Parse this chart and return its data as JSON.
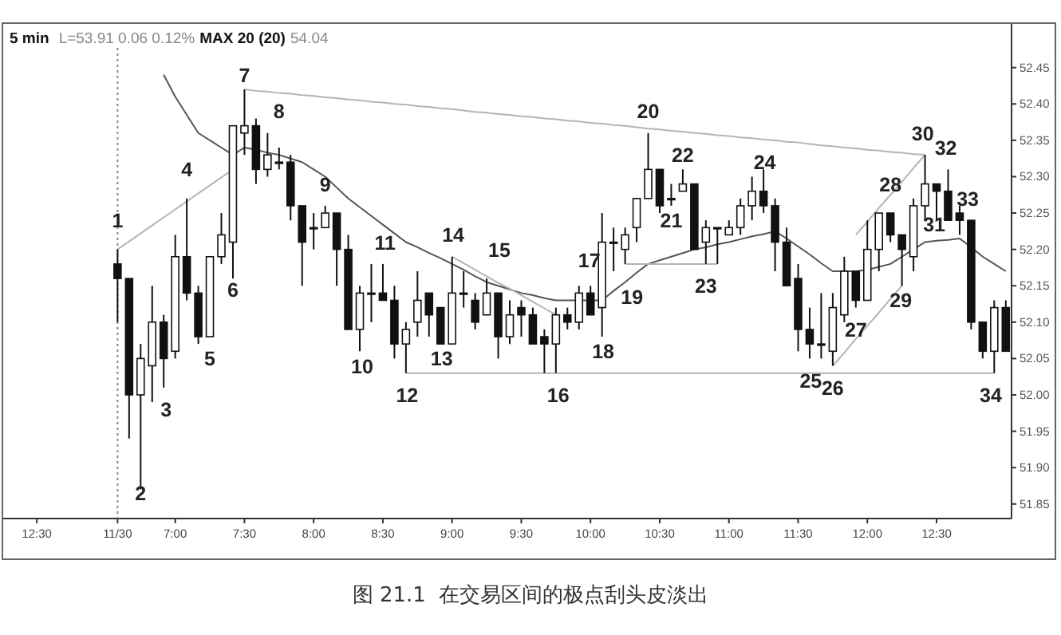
{
  "chart_data": {
    "type": "candlestick",
    "title": "5 min",
    "subtitle": "L=53.91 0.06 0.12% **MAX 20 (20)** 54.04",
    "categories": [
      null,
      null,
      "12:30",
      null,
      null,
      null,
      null,
      null,
      null,
      "11/30",
      null,
      null,
      null,
      null,
      "7:00",
      null,
      null,
      null,
      null,
      null,
      "7:30",
      null,
      null,
      null,
      null,
      null,
      "8:00",
      null,
      null,
      null,
      null,
      null,
      "8:30",
      null,
      null,
      null,
      null,
      null,
      "9:00",
      null,
      null,
      null,
      null,
      null,
      "9:30",
      null,
      null,
      null,
      null,
      null,
      "10:00",
      null,
      null,
      null,
      null,
      null,
      "10:30",
      null,
      null,
      null,
      null,
      null,
      "11:00",
      null,
      null,
      null,
      null,
      null,
      "11:30",
      null,
      null,
      null,
      null,
      null,
      "12:00",
      null,
      null,
      null,
      null,
      null,
      "12:30",
      null,
      null,
      null,
      null,
      null,
      null
    ],
    "ohlc": [
      null,
      null,
      null,
      null,
      null,
      null,
      null,
      null,
      null,
      [
        52.18,
        52.2,
        52.1,
        52.16
      ],
      [
        52.16,
        52.16,
        51.94,
        52.0
      ],
      [
        52.0,
        52.07,
        51.87,
        52.05
      ],
      [
        52.04,
        52.15,
        51.99,
        52.1
      ],
      [
        52.1,
        52.11,
        52.01,
        52.05
      ],
      [
        52.06,
        52.22,
        52.05,
        52.19
      ],
      [
        52.19,
        52.27,
        52.13,
        52.14
      ],
      [
        52.14,
        52.15,
        52.07,
        52.08
      ],
      [
        52.08,
        52.19,
        52.08,
        52.19
      ],
      [
        52.19,
        52.25,
        52.18,
        52.22
      ],
      [
        52.21,
        52.37,
        52.16,
        52.37
      ],
      [
        52.36,
        52.42,
        52.33,
        52.37
      ],
      [
        52.37,
        52.38,
        52.29,
        52.31
      ],
      [
        52.31,
        52.36,
        52.3,
        52.33
      ],
      [
        52.32,
        52.34,
        52.31,
        52.32
      ],
      [
        52.32,
        52.33,
        52.24,
        52.26
      ],
      [
        52.26,
        52.26,
        52.15,
        52.21
      ],
      [
        52.23,
        52.25,
        52.2,
        52.23
      ],
      [
        52.23,
        52.26,
        52.23,
        52.25
      ],
      [
        52.25,
        52.25,
        52.15,
        52.2
      ],
      [
        52.2,
        52.22,
        52.09,
        52.09
      ],
      [
        52.09,
        52.15,
        52.06,
        52.14
      ],
      [
        52.14,
        52.18,
        52.1,
        52.14
      ],
      [
        52.14,
        52.18,
        52.13,
        52.13
      ],
      [
        52.13,
        52.15,
        52.05,
        52.07
      ],
      [
        52.07,
        52.1,
        52.03,
        52.09
      ],
      [
        52.1,
        52.17,
        52.08,
        52.13
      ],
      [
        52.14,
        52.14,
        52.08,
        52.11
      ],
      [
        52.12,
        52.12,
        52.07,
        52.07
      ],
      [
        52.07,
        52.19,
        52.07,
        52.14
      ],
      [
        52.14,
        52.17,
        52.12,
        52.14
      ],
      [
        52.13,
        52.14,
        52.09,
        52.1
      ],
      [
        52.11,
        52.16,
        52.11,
        52.14
      ],
      [
        52.14,
        52.14,
        52.05,
        52.08
      ],
      [
        52.08,
        52.13,
        52.07,
        52.11
      ],
      [
        52.12,
        52.13,
        52.08,
        52.11
      ],
      [
        52.11,
        52.12,
        52.07,
        52.07
      ],
      [
        52.08,
        52.09,
        52.03,
        52.07
      ],
      [
        52.07,
        52.12,
        52.03,
        52.11
      ],
      [
        52.11,
        52.12,
        52.09,
        52.1
      ],
      [
        52.1,
        52.15,
        52.09,
        52.14
      ],
      [
        52.14,
        52.15,
        52.11,
        52.11
      ],
      [
        52.12,
        52.25,
        52.08,
        52.21
      ],
      [
        52.21,
        52.23,
        52.17,
        52.21
      ],
      [
        52.2,
        52.23,
        52.18,
        52.22
      ],
      [
        52.23,
        52.27,
        52.21,
        52.27
      ],
      [
        52.27,
        52.36,
        52.27,
        52.31
      ],
      [
        52.31,
        52.31,
        52.25,
        52.26
      ],
      [
        52.27,
        52.29,
        52.26,
        52.27
      ],
      [
        52.28,
        52.31,
        52.28,
        52.29
      ],
      [
        52.29,
        52.29,
        52.2,
        52.2
      ],
      [
        52.21,
        52.24,
        52.18,
        52.23
      ],
      [
        52.23,
        52.23,
        52.18,
        52.23
      ],
      [
        52.22,
        52.24,
        52.22,
        52.23
      ],
      [
        52.23,
        52.27,
        52.22,
        52.26
      ],
      [
        52.26,
        52.3,
        52.24,
        52.28
      ],
      [
        52.28,
        52.31,
        52.25,
        52.26
      ],
      [
        52.26,
        52.27,
        52.17,
        52.21
      ],
      [
        52.21,
        52.23,
        52.15,
        52.15
      ],
      [
        52.16,
        52.18,
        52.06,
        52.09
      ],
      [
        52.09,
        52.12,
        52.05,
        52.07
      ],
      [
        52.07,
        52.14,
        52.05,
        52.07
      ],
      [
        52.06,
        52.14,
        52.04,
        52.12
      ],
      [
        52.11,
        52.19,
        52.1,
        52.17
      ],
      [
        52.17,
        52.17,
        52.12,
        52.13
      ],
      [
        52.13,
        52.24,
        52.13,
        52.2
      ],
      [
        52.2,
        52.25,
        52.17,
        52.25
      ],
      [
        52.25,
        52.25,
        52.21,
        52.22
      ],
      [
        52.22,
        52.22,
        52.15,
        52.2
      ],
      [
        52.19,
        52.27,
        52.17,
        52.26
      ],
      [
        52.26,
        52.33,
        52.24,
        52.29
      ],
      [
        52.29,
        52.29,
        52.24,
        52.28
      ],
      [
        52.28,
        52.31,
        52.24,
        52.24
      ],
      [
        52.25,
        52.26,
        52.22,
        52.24
      ],
      [
        52.24,
        52.24,
        52.09,
        52.1
      ],
      [
        52.1,
        52.1,
        52.05,
        52.06
      ],
      [
        52.06,
        52.13,
        52.03,
        52.12
      ],
      [
        52.12,
        52.13,
        52.06,
        52.06
      ]
    ],
    "series": [
      {
        "type": "line",
        "color": "#555555",
        "values": [
          null,
          null,
          null,
          null,
          null,
          null,
          null,
          null,
          null,
          null,
          null,
          null,
          null,
          52.44,
          52.41,
          52.385,
          52.36,
          52.35,
          52.34,
          52.33,
          52.34,
          52.337,
          52.333,
          52.33,
          52.325,
          52.32,
          52.31,
          52.3,
          52.285,
          52.27,
          52.258,
          52.246,
          52.234,
          52.222,
          52.21,
          52.203,
          52.195,
          52.188,
          52.18,
          52.172,
          52.163,
          52.155,
          52.15,
          52.145,
          52.14,
          52.137,
          52.133,
          52.13,
          52.13,
          52.13,
          52.13,
          52.13,
          52.143,
          52.155,
          52.168,
          52.18,
          52.185,
          52.19,
          52.195,
          52.2,
          52.203,
          52.207,
          52.21,
          52.214,
          52.218,
          52.221,
          52.225,
          52.215,
          52.204,
          52.193,
          52.181,
          52.17,
          52.17,
          52.17,
          52.172,
          52.176,
          52.18,
          52.19,
          52.2,
          52.21,
          52.212,
          52.213,
          52.215,
          52.203,
          52.19,
          52.18,
          52.17
        ]
      },
      {
        "type": "line",
        "color": "#b4b4b4",
        "values": [
          null,
          null,
          null,
          null,
          null,
          null,
          null,
          null,
          null,
          52.2,
          52.211,
          52.222,
          52.233,
          52.244,
          52.255,
          52.266,
          52.277,
          52.288,
          52.299,
          52.31,
          null,
          null,
          null,
          null,
          null,
          null,
          null,
          null,
          null,
          null,
          null,
          null,
          null,
          null,
          null,
          null,
          null,
          null,
          null,
          null,
          null,
          null,
          null,
          null,
          null,
          null,
          null,
          null,
          null,
          null,
          null,
          null,
          null,
          null,
          null,
          null,
          null,
          null,
          null,
          null,
          null,
          null,
          null,
          null,
          null,
          null,
          null,
          null,
          null,
          null,
          null,
          null,
          null,
          null,
          null,
          null,
          null,
          null,
          null,
          null,
          null,
          null,
          null,
          null,
          null,
          null,
          null
        ]
      },
      {
        "type": "line",
        "color": "#b4b4b4",
        "values": [
          null,
          null,
          null,
          null,
          null,
          null,
          null,
          null,
          null,
          null,
          null,
          null,
          null,
          null,
          null,
          null,
          null,
          null,
          null,
          null,
          52.42,
          52.418,
          52.417,
          52.415,
          52.414,
          52.412,
          52.411,
          52.409,
          52.408,
          52.406,
          52.405,
          52.403,
          52.402,
          52.4,
          52.399,
          52.397,
          52.396,
          52.394,
          52.393,
          52.391,
          52.389,
          52.388,
          52.386,
          52.385,
          52.383,
          52.382,
          52.38,
          52.379,
          52.377,
          52.376,
          52.374,
          52.373,
          52.371,
          52.37,
          52.368,
          52.366,
          52.365,
          52.363,
          52.362,
          52.36,
          52.359,
          52.357,
          52.356,
          52.354,
          52.353,
          52.351,
          52.35,
          52.348,
          52.347,
          52.345,
          52.343,
          52.342,
          52.34,
          52.339,
          52.337,
          52.336,
          52.334,
          52.333,
          52.331,
          52.33,
          null,
          null,
          null,
          null,
          null,
          null,
          null
        ]
      },
      {
        "type": "line",
        "color": "#b4b4b4",
        "values": [
          null,
          null,
          null,
          null,
          null,
          null,
          null,
          null,
          null,
          null,
          null,
          null,
          null,
          null,
          null,
          null,
          null,
          null,
          null,
          null,
          null,
          null,
          null,
          null,
          null,
          null,
          null,
          null,
          null,
          null,
          null,
          null,
          null,
          null,
          52.03,
          52.03,
          52.03,
          52.03,
          52.03,
          52.03,
          52.03,
          52.03,
          52.03,
          52.03,
          52.03,
          52.03,
          52.03,
          52.03,
          52.03,
          52.03,
          52.03,
          52.03,
          52.03,
          52.03,
          52.03,
          52.03,
          52.03,
          52.03,
          52.03,
          52.03,
          52.03,
          52.03,
          52.03,
          52.03,
          52.03,
          52.03,
          52.03,
          52.03,
          52.03,
          52.03,
          52.03,
          52.03,
          52.03,
          52.03,
          52.03,
          52.03,
          52.03,
          52.03,
          52.03,
          52.03,
          52.03,
          52.03,
          52.03,
          52.03,
          52.03,
          52.03,
          null
        ]
      },
      {
        "type": "line",
        "color": "#b4b4b4",
        "values": [
          null,
          null,
          null,
          null,
          null,
          null,
          null,
          null,
          null,
          null,
          null,
          null,
          null,
          null,
          null,
          null,
          null,
          null,
          null,
          null,
          null,
          null,
          null,
          null,
          null,
          null,
          null,
          null,
          null,
          null,
          null,
          null,
          null,
          null,
          null,
          null,
          null,
          null,
          52.19,
          52.181,
          52.172,
          52.163,
          52.154,
          52.146,
          52.137,
          52.128,
          52.119,
          52.11,
          null,
          null,
          null,
          null,
          null,
          null,
          null,
          null,
          null,
          null,
          null,
          null,
          null,
          null,
          null,
          null,
          null,
          null,
          null,
          null,
          null,
          null,
          null,
          null,
          null,
          null,
          null,
          null,
          null,
          null,
          null,
          null,
          null,
          null,
          null,
          null,
          null,
          null,
          null
        ]
      },
      {
        "type": "line",
        "color": "#b4b4b4",
        "values": [
          null,
          null,
          null,
          null,
          null,
          null,
          null,
          null,
          null,
          null,
          null,
          null,
          null,
          null,
          null,
          null,
          null,
          null,
          null,
          null,
          null,
          null,
          null,
          null,
          null,
          null,
          null,
          null,
          null,
          null,
          null,
          null,
          null,
          null,
          null,
          null,
          null,
          null,
          null,
          null,
          null,
          null,
          null,
          null,
          null,
          null,
          null,
          null,
          null,
          null,
          null,
          null,
          null,
          52.18,
          52.18,
          52.18,
          52.18,
          52.18,
          52.18,
          52.18,
          52.18,
          52.18,
          null,
          null,
          null,
          null,
          null,
          null,
          null,
          null,
          null,
          null,
          null,
          null,
          null,
          null,
          null,
          null,
          null,
          null,
          null,
          null,
          null,
          null,
          null,
          null,
          null
        ]
      },
      {
        "type": "line",
        "color": "#b4b4b4",
        "values": [
          null,
          null,
          null,
          null,
          null,
          null,
          null,
          null,
          null,
          null,
          null,
          null,
          null,
          null,
          null,
          null,
          null,
          null,
          null,
          null,
          null,
          null,
          null,
          null,
          null,
          null,
          null,
          null,
          null,
          null,
          null,
          null,
          null,
          null,
          null,
          null,
          null,
          null,
          null,
          null,
          null,
          null,
          null,
          null,
          null,
          null,
          null,
          null,
          null,
          null,
          null,
          null,
          null,
          null,
          null,
          null,
          null,
          null,
          null,
          null,
          null,
          null,
          null,
          null,
          null,
          null,
          null,
          null,
          null,
          null,
          null,
          52.04,
          52.058,
          52.077,
          52.095,
          52.113,
          52.132,
          52.15,
          null,
          null,
          null,
          null,
          null,
          null,
          null,
          null,
          null
        ]
      },
      {
        "type": "line",
        "color": "#b4b4b4",
        "values": [
          null,
          null,
          null,
          null,
          null,
          null,
          null,
          null,
          null,
          null,
          null,
          null,
          null,
          null,
          null,
          null,
          null,
          null,
          null,
          null,
          null,
          null,
          null,
          null,
          null,
          null,
          null,
          null,
          null,
          null,
          null,
          null,
          null,
          null,
          null,
          null,
          null,
          null,
          null,
          null,
          null,
          null,
          null,
          null,
          null,
          null,
          null,
          null,
          null,
          null,
          null,
          null,
          null,
          null,
          null,
          null,
          null,
          null,
          null,
          null,
          null,
          null,
          null,
          null,
          null,
          null,
          null,
          null,
          null,
          null,
          null,
          null,
          null,
          52.22,
          52.238,
          52.257,
          52.275,
          52.293,
          52.312,
          52.33,
          null,
          null,
          null,
          null,
          null,
          null,
          null
        ]
      }
    ],
    "ylim": [
      51.83,
      52.51
    ],
    "yticks": [
      51.85,
      {
        "value": 51.9,
        "label": "51.90"
      },
      51.95,
      {
        "value": 52.0,
        "label": "52.00"
      },
      52.05,
      {
        "value": 52.1,
        "label": "52.10"
      },
      52.15,
      {
        "value": 52.2,
        "label": "52.20"
      },
      52.25,
      {
        "value": 52.3,
        "label": "52.30"
      },
      52.35,
      {
        "value": 52.4,
        "label": "52.40"
      },
      52.45
    ],
    "ref_lines": [
      {
        "axis": "x",
        "value": "11/30",
        "color": "#888888",
        "line_style": "dotted"
      }
    ],
    "annotations": [
      "1",
      "2",
      "3",
      "4",
      "5",
      "6",
      "7",
      "8",
      "9",
      "10",
      "11",
      "12",
      "13",
      "14",
      "15",
      "16",
      "17",
      "18",
      "19",
      "20",
      "21",
      "22",
      "23",
      "24",
      "25",
      "26",
      "27",
      "28",
      "29",
      "30",
      "31",
      "32",
      "33",
      "34",
      "图 21.1  在交易区间的极点刮头皮淡出"
    ]
  }
}
